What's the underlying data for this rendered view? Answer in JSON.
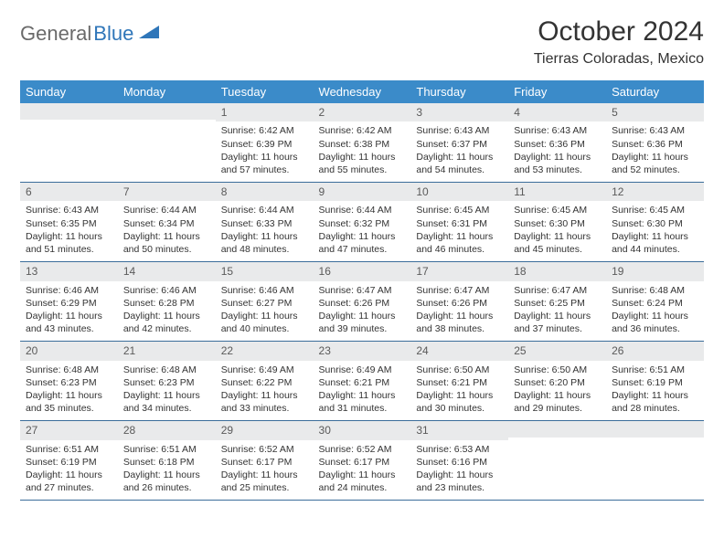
{
  "logo": {
    "text1": "General",
    "text2": "Blue"
  },
  "title": "October 2024",
  "location": "Tierras Coloradas, Mexico",
  "colors": {
    "header_bg": "#3b8bc9",
    "header_text": "#ffffff",
    "daynum_bg": "#e9eaeb",
    "cell_border": "#3b6d9a",
    "logo_gray": "#6a6a6a",
    "logo_blue": "#2f76b9",
    "text": "#333333",
    "page_bg": "#ffffff"
  },
  "weekdays": [
    "Sunday",
    "Monday",
    "Tuesday",
    "Wednesday",
    "Thursday",
    "Friday",
    "Saturday"
  ],
  "weeks": [
    [
      null,
      null,
      {
        "n": "1",
        "sr": "6:42 AM",
        "ss": "6:39 PM",
        "dl": "11 hours and 57 minutes."
      },
      {
        "n": "2",
        "sr": "6:42 AM",
        "ss": "6:38 PM",
        "dl": "11 hours and 55 minutes."
      },
      {
        "n": "3",
        "sr": "6:43 AM",
        "ss": "6:37 PM",
        "dl": "11 hours and 54 minutes."
      },
      {
        "n": "4",
        "sr": "6:43 AM",
        "ss": "6:36 PM",
        "dl": "11 hours and 53 minutes."
      },
      {
        "n": "5",
        "sr": "6:43 AM",
        "ss": "6:36 PM",
        "dl": "11 hours and 52 minutes."
      }
    ],
    [
      {
        "n": "6",
        "sr": "6:43 AM",
        "ss": "6:35 PM",
        "dl": "11 hours and 51 minutes."
      },
      {
        "n": "7",
        "sr": "6:44 AM",
        "ss": "6:34 PM",
        "dl": "11 hours and 50 minutes."
      },
      {
        "n": "8",
        "sr": "6:44 AM",
        "ss": "6:33 PM",
        "dl": "11 hours and 48 minutes."
      },
      {
        "n": "9",
        "sr": "6:44 AM",
        "ss": "6:32 PM",
        "dl": "11 hours and 47 minutes."
      },
      {
        "n": "10",
        "sr": "6:45 AM",
        "ss": "6:31 PM",
        "dl": "11 hours and 46 minutes."
      },
      {
        "n": "11",
        "sr": "6:45 AM",
        "ss": "6:30 PM",
        "dl": "11 hours and 45 minutes."
      },
      {
        "n": "12",
        "sr": "6:45 AM",
        "ss": "6:30 PM",
        "dl": "11 hours and 44 minutes."
      }
    ],
    [
      {
        "n": "13",
        "sr": "6:46 AM",
        "ss": "6:29 PM",
        "dl": "11 hours and 43 minutes."
      },
      {
        "n": "14",
        "sr": "6:46 AM",
        "ss": "6:28 PM",
        "dl": "11 hours and 42 minutes."
      },
      {
        "n": "15",
        "sr": "6:46 AM",
        "ss": "6:27 PM",
        "dl": "11 hours and 40 minutes."
      },
      {
        "n": "16",
        "sr": "6:47 AM",
        "ss": "6:26 PM",
        "dl": "11 hours and 39 minutes."
      },
      {
        "n": "17",
        "sr": "6:47 AM",
        "ss": "6:26 PM",
        "dl": "11 hours and 38 minutes."
      },
      {
        "n": "18",
        "sr": "6:47 AM",
        "ss": "6:25 PM",
        "dl": "11 hours and 37 minutes."
      },
      {
        "n": "19",
        "sr": "6:48 AM",
        "ss": "6:24 PM",
        "dl": "11 hours and 36 minutes."
      }
    ],
    [
      {
        "n": "20",
        "sr": "6:48 AM",
        "ss": "6:23 PM",
        "dl": "11 hours and 35 minutes."
      },
      {
        "n": "21",
        "sr": "6:48 AM",
        "ss": "6:23 PM",
        "dl": "11 hours and 34 minutes."
      },
      {
        "n": "22",
        "sr": "6:49 AM",
        "ss": "6:22 PM",
        "dl": "11 hours and 33 minutes."
      },
      {
        "n": "23",
        "sr": "6:49 AM",
        "ss": "6:21 PM",
        "dl": "11 hours and 31 minutes."
      },
      {
        "n": "24",
        "sr": "6:50 AM",
        "ss": "6:21 PM",
        "dl": "11 hours and 30 minutes."
      },
      {
        "n": "25",
        "sr": "6:50 AM",
        "ss": "6:20 PM",
        "dl": "11 hours and 29 minutes."
      },
      {
        "n": "26",
        "sr": "6:51 AM",
        "ss": "6:19 PM",
        "dl": "11 hours and 28 minutes."
      }
    ],
    [
      {
        "n": "27",
        "sr": "6:51 AM",
        "ss": "6:19 PM",
        "dl": "11 hours and 27 minutes."
      },
      {
        "n": "28",
        "sr": "6:51 AM",
        "ss": "6:18 PM",
        "dl": "11 hours and 26 minutes."
      },
      {
        "n": "29",
        "sr": "6:52 AM",
        "ss": "6:17 PM",
        "dl": "11 hours and 25 minutes."
      },
      {
        "n": "30",
        "sr": "6:52 AM",
        "ss": "6:17 PM",
        "dl": "11 hours and 24 minutes."
      },
      {
        "n": "31",
        "sr": "6:53 AM",
        "ss": "6:16 PM",
        "dl": "11 hours and 23 minutes."
      },
      null,
      null
    ]
  ],
  "labels": {
    "sunrise": "Sunrise: ",
    "sunset": "Sunset: ",
    "daylight": "Daylight: "
  }
}
